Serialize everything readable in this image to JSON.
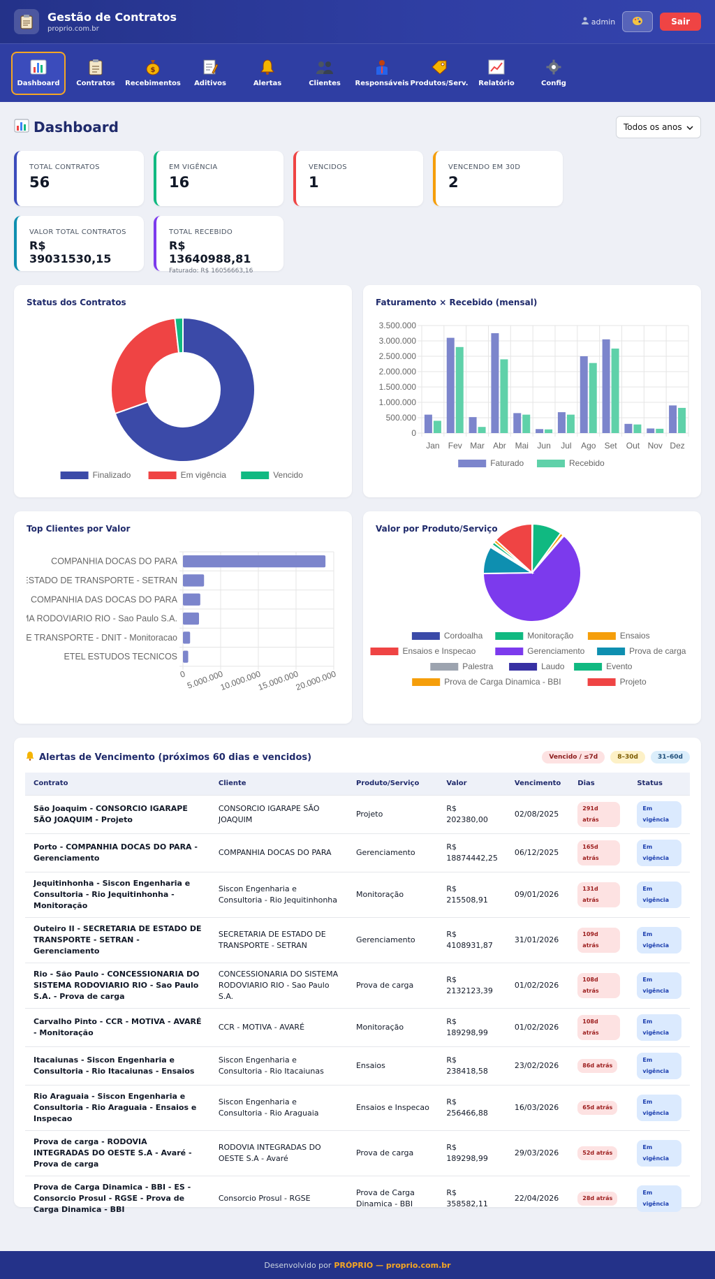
{
  "header": {
    "title": "Gestão de Contratos",
    "subtitle": "proprio.com.br",
    "user": "admin",
    "logout_label": "Sair"
  },
  "nav": [
    {
      "label": "Dashboard",
      "icon": "bar-chart-icon",
      "active": true
    },
    {
      "label": "Contratos",
      "icon": "clipboard-icon"
    },
    {
      "label": "Recebimentos",
      "icon": "money-bag-icon"
    },
    {
      "label": "Aditivos",
      "icon": "memo-icon"
    },
    {
      "label": "Alertas",
      "icon": "bell-icon"
    },
    {
      "label": "Clientes",
      "icon": "people-icon"
    },
    {
      "label": "Responsáveis",
      "icon": "person-icon"
    },
    {
      "label": "Produtos/Serv.",
      "icon": "tag-icon"
    },
    {
      "label": "Relatório",
      "icon": "line-chart-icon"
    },
    {
      "label": "Config",
      "icon": "gear-icon"
    }
  ],
  "page": {
    "title": "Dashboard",
    "year_filter": "Todos os anos"
  },
  "kpis": [
    {
      "label": "TOTAL CONTRATOS",
      "value": "56",
      "color": "#3b4cbc"
    },
    {
      "label": "EM VIGÊNCIA",
      "value": "16",
      "color": "#10b981"
    },
    {
      "label": "VENCIDOS",
      "value": "1",
      "color": "#ef4444"
    },
    {
      "label": "VENCENDO EM 30D",
      "value": "2",
      "color": "#f59e0b"
    },
    {
      "label": "VALOR TOTAL CONTRATOS",
      "value": "R$ 39031530,15",
      "color": "#0e8fb0"
    },
    {
      "label": "TOTAL RECEBIDO",
      "value": "R$ 13640988,81",
      "sub": "Faturado: R$ 16056663,16",
      "color": "#7c3aed"
    }
  ],
  "chart_data": [
    {
      "type": "pie",
      "title": "Status dos Contratos",
      "labels": [
        "Finalizado",
        "Em vigência",
        "Vencido"
      ],
      "values": [
        39,
        16,
        1
      ],
      "colors": [
        "#3b4aa8",
        "#ef4444",
        "#10b981"
      ],
      "legend": "bottom"
    },
    {
      "type": "bar",
      "title": "Faturamento × Recebido (mensal)",
      "categories": [
        "Jan",
        "Fev",
        "Mar",
        "Abr",
        "Mai",
        "Jun",
        "Jul",
        "Ago",
        "Set",
        "Out",
        "Nov",
        "Dez"
      ],
      "series": [
        {
          "name": "Faturado",
          "values": [
            600000,
            3100000,
            520000,
            3250000,
            650000,
            130000,
            680000,
            2500000,
            3050000,
            300000,
            150000,
            900000
          ],
          "color": "#7c85cc"
        },
        {
          "name": "Recebido",
          "values": [
            400000,
            2800000,
            200000,
            2400000,
            600000,
            120000,
            600000,
            2280000,
            2750000,
            280000,
            140000,
            820000
          ],
          "color": "#5fd1a9"
        }
      ],
      "yticks": [
        "0",
        "500.000",
        "1.000.000",
        "1.500.000",
        "2.000.000",
        "2.500.000",
        "3.000.000",
        "3.500.000"
      ],
      "ylim": [
        0,
        3500000
      ],
      "legend": "bottom",
      "grid": true
    },
    {
      "type": "bar",
      "orientation": "horizontal",
      "title": "Top Clientes por Valor",
      "categories": [
        "COMPANHIA DOCAS DO PARA",
        "ESTADO DE TRANSPORTE - SETRAN",
        "COMPANHIA DAS DOCAS DO PARA",
        "MA RODOVIARIO RIO - Sao Paulo S.A.",
        "DE TRANSPORTE - DNIT - Monitoracao",
        "ETEL ESTUDOS TECNICOS"
      ],
      "values": [
        18900000,
        2800000,
        2300000,
        2130000,
        950000,
        700000
      ],
      "color": "#7c85cc",
      "xticks": [
        "0",
        "5.000.000",
        "10.000.000",
        "15.000.000",
        "20.000.000"
      ],
      "xlim": [
        0,
        20000000
      ],
      "grid": true
    },
    {
      "type": "pie",
      "title": "Valor por Produto/Serviço",
      "labels": [
        "Cordoalha",
        "Monitoração",
        "Ensaios",
        "Ensaios e Inspecao",
        "Gerenciamento",
        "Prova de carga",
        "Palestra",
        "Laudo",
        "Evento",
        "Prova de Carga Dinamica - BBI",
        "Projeto"
      ],
      "values": [
        0.2,
        9.2,
        1.0,
        0.3,
        59.8,
        8.5,
        0.4,
        0.5,
        1.0,
        0.9,
        12.5
      ],
      "colors": [
        "#3b4aa8",
        "#10b981",
        "#f59e0b",
        "#ef4444",
        "#7c3aed",
        "#0e8fb0",
        "#9ca3af",
        "#3730a3",
        "#10b981",
        "#f59e0b",
        "#ef4444"
      ],
      "legend": "bottom"
    }
  ],
  "alerts": {
    "title": "Alertas de Vencimento (próximos 60 dias e vencidos)",
    "legend": [
      "Vencido / ≤7d",
      "8–30d",
      "31–60d"
    ],
    "columns": [
      "Contrato",
      "Cliente",
      "Produto/Serviço",
      "Valor",
      "Vencimento",
      "Dias",
      "Status"
    ],
    "rows": [
      {
        "contrato": "São Joaquim - CONSORCIO IGARAPE SÃO JOAQUIM - Projeto",
        "cliente": "CONSORCIO IGARAPE SÃO JOAQUIM",
        "produto": "Projeto",
        "valor": "R$ 202380,00",
        "vencimento": "02/08/2025",
        "dias": "291d atrás",
        "status": "Em vigência"
      },
      {
        "contrato": "Porto - COMPANHIA DOCAS DO PARA - Gerenciamento",
        "cliente": "COMPANHIA DOCAS DO PARA",
        "produto": "Gerenciamento",
        "valor": "R$ 18874442,25",
        "vencimento": "06/12/2025",
        "dias": "165d atrás",
        "status": "Em vigência"
      },
      {
        "contrato": "Jequitinhonha - Siscon Engenharia e Consultoria - Rio Jequitinhonha - Monitoração",
        "cliente": "Siscon Engenharia e Consultoria - Rio Jequitinhonha",
        "produto": "Monitoração",
        "valor": "R$ 215508,91",
        "vencimento": "09/01/2026",
        "dias": "131d atrás",
        "status": "Em vigência"
      },
      {
        "contrato": "Outeiro II - SECRETARIA DE ESTADO DE TRANSPORTE - SETRAN - Gerenciamento",
        "cliente": "SECRETARIA DE ESTADO DE TRANSPORTE - SETRAN",
        "produto": "Gerenciamento",
        "valor": "R$ 4108931,87",
        "vencimento": "31/01/2026",
        "dias": "109d atrás",
        "status": "Em vigência"
      },
      {
        "contrato": "Rio - São Paulo - CONCESSIONARIA DO SISTEMA RODOVIARIO RIO - Sao Paulo S.A. - Prova de carga",
        "cliente": "CONCESSIONARIA DO SISTEMA RODOVIARIO RIO - Sao Paulo S.A.",
        "produto": "Prova de carga",
        "valor": "R$ 2132123,39",
        "vencimento": "01/02/2026",
        "dias": "108d atrás",
        "status": "Em vigência"
      },
      {
        "contrato": "Carvalho Pinto - CCR - MOTIVA - AVARÉ - Monitoração",
        "cliente": "CCR - MOTIVA - AVARÉ",
        "produto": "Monitoração",
        "valor": "R$ 189298,99",
        "vencimento": "01/02/2026",
        "dias": "108d atrás",
        "status": "Em vigência"
      },
      {
        "contrato": "Itacaiunas - Siscon Engenharia e Consultoria - Rio Itacaiunas - Ensaios",
        "cliente": "Siscon Engenharia e Consultoria - Rio Itacaiunas",
        "produto": "Ensaios",
        "valor": "R$ 238418,58",
        "vencimento": "23/02/2026",
        "dias": "86d atrás",
        "status": "Em vigência"
      },
      {
        "contrato": "Rio Araguaia - Siscon Engenharia e Consultoria - Rio Araguaia - Ensaios e Inspecao",
        "cliente": "Siscon Engenharia e Consultoria - Rio Araguaia",
        "produto": "Ensaios e Inspecao",
        "valor": "R$ 256466,88",
        "vencimento": "16/03/2026",
        "dias": "65d atrás",
        "status": "Em vigência"
      },
      {
        "contrato": "Prova de carga - RODOVIA INTEGRADAS DO OESTE S.A - Avaré - Prova de carga",
        "cliente": "RODOVIA INTEGRADAS DO OESTE S.A - Avaré",
        "produto": "Prova de carga",
        "valor": "R$ 189298,99",
        "vencimento": "29/03/2026",
        "dias": "52d atrás",
        "status": "Em vigência"
      },
      {
        "contrato": "Prova de Carga Dinamica - BBI - ES - Consorcio Prosul - RGSE - Prova de Carga Dinamica - BBI",
        "cliente": "Consorcio Prosul - RGSE",
        "produto": "Prova de Carga Dinamica - BBI",
        "valor": "R$ 358582,11",
        "vencimento": "22/04/2026",
        "dias": "28d atrás",
        "status": "Em vigência"
      }
    ]
  },
  "footer": {
    "prefix": "Desenvolvido por",
    "brand": "PRÓPRIO — proprio.com.br"
  }
}
